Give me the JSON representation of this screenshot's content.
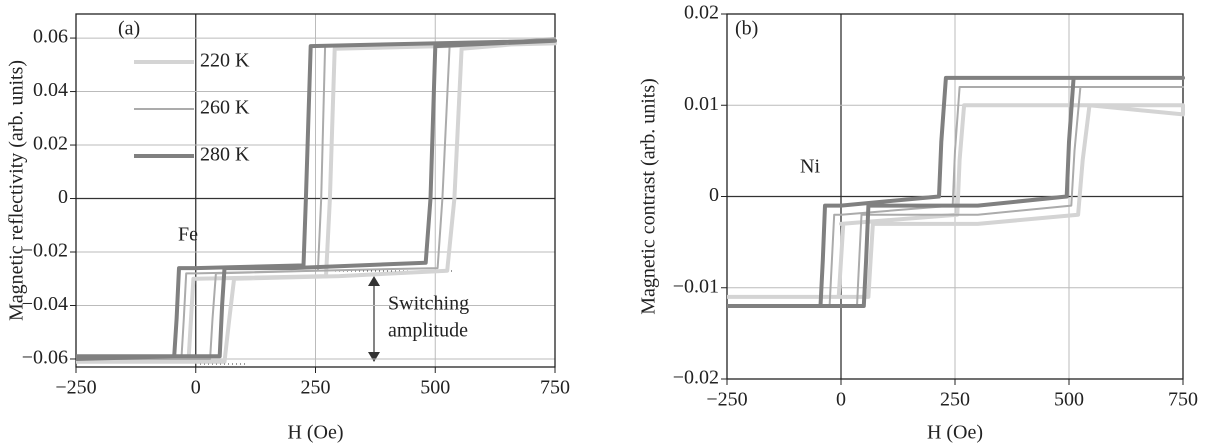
{
  "chart_data": [
    {
      "type": "line",
      "xlabel": "H (Oe)",
      "ylabel": "Magnetic reflectivity (arb. units)",
      "annotations": [
        "(a)",
        "Fe",
        "Switching",
        "amplitude"
      ],
      "xlim": [
        -250,
        750
      ],
      "ylim": [
        -0.063,
        0.069
      ],
      "xticks": [
        {
          "value": -250,
          "label": "−250"
        },
        0,
        250,
        500,
        750
      ],
      "yticks": [
        {
          "value": -0.06,
          "label": "−0.06"
        },
        {
          "value": -0.04,
          "label": "−0.04"
        },
        {
          "value": -0.02,
          "label": "−0.02"
        },
        0,
        0.02,
        0.04,
        0.06
      ],
      "grid": true,
      "legend": "upper left",
      "series": [
        {
          "name": "220 K",
          "color": "#d4d4d4",
          "width": 4,
          "x": [
            -250,
            60,
            70,
            80,
            300,
            525,
            540,
            555,
            750,
            750,
            290,
            280,
            272,
            0,
            -5,
            -10,
            -15,
            -250
          ],
          "values": [
            -0.061,
            -0.061,
            -0.045,
            -0.03,
            -0.029,
            -0.027,
            0.0,
            0.056,
            0.059,
            0.058,
            0.056,
            0.0,
            -0.029,
            -0.03,
            -0.03,
            -0.045,
            -0.06,
            -0.061
          ]
        },
        {
          "name": "260 K",
          "color": "#ababab",
          "width": 2,
          "x": [
            -250,
            30,
            35,
            42,
            250,
            505,
            515,
            530,
            750,
            750,
            270,
            262,
            255,
            0,
            -20,
            -25,
            -30,
            -250
          ],
          "values": [
            -0.06,
            -0.06,
            -0.045,
            -0.028,
            -0.027,
            -0.026,
            0.0,
            0.057,
            0.06,
            0.059,
            0.057,
            0.0,
            -0.027,
            -0.028,
            -0.028,
            -0.045,
            -0.06,
            -0.06
          ]
        },
        {
          "name": "280 K",
          "color": "#808080",
          "width": 4,
          "x": [
            -250,
            50,
            55,
            60,
            200,
            480,
            490,
            500,
            750,
            750,
            240,
            230,
            225,
            0,
            -35,
            -40,
            -45,
            -250
          ],
          "values": [
            -0.059,
            -0.059,
            -0.04,
            -0.026,
            -0.026,
            -0.024,
            0.0,
            0.057,
            0.059,
            0.059,
            0.057,
            0.0,
            -0.025,
            -0.026,
            -0.026,
            -0.045,
            -0.059,
            -0.06
          ]
        }
      ]
    },
    {
      "type": "line",
      "xlabel": "H (Oe)",
      "ylabel": "Magnetic contrast (arb. units)",
      "annotations": [
        "(b)",
        "Ni"
      ],
      "xlim": [
        -250,
        750
      ],
      "ylim": [
        -0.02,
        0.02
      ],
      "xticks": [
        {
          "value": -250,
          "label": "−250"
        },
        0,
        250,
        500,
        750
      ],
      "yticks": [
        {
          "value": -0.02,
          "label": "−0.02"
        },
        {
          "value": -0.01,
          "label": "−0.01"
        },
        0,
        0.01,
        0.02
      ],
      "grid": true,
      "series": [
        {
          "color": "#d4d4d4",
          "width": 4,
          "x": [
            -250,
            60,
            65,
            70,
            300,
            520,
            530,
            545,
            750,
            750,
            270,
            260,
            255,
            0,
            5,
            0,
            -5,
            -250
          ],
          "values": [
            -0.011,
            -0.011,
            -0.007,
            -0.003,
            -0.003,
            -0.002,
            0.004,
            0.01,
            0.009,
            0.01,
            0.01,
            0.004,
            -0.002,
            -0.003,
            -0.003,
            -0.007,
            -0.011,
            -0.011
          ]
        },
        {
          "color": "#ababab",
          "width": 2,
          "x": [
            -250,
            35,
            40,
            45,
            300,
            505,
            512,
            525,
            750,
            750,
            260,
            250,
            245,
            0,
            -15,
            -20,
            -25,
            -250
          ],
          "values": [
            -0.012,
            -0.012,
            -0.007,
            -0.002,
            -0.002,
            -0.001,
            0.005,
            0.012,
            0.012,
            0.012,
            0.012,
            0.005,
            -0.001,
            -0.002,
            -0.002,
            -0.007,
            -0.012,
            -0.012
          ]
        },
        {
          "color": "#808080",
          "width": 4,
          "x": [
            -250,
            50,
            55,
            60,
            300,
            495,
            500,
            510,
            750,
            750,
            230,
            220,
            215,
            0,
            -35,
            -40,
            -45,
            -250
          ],
          "values": [
            -0.012,
            -0.012,
            -0.007,
            -0.001,
            -0.001,
            0.0,
            0.006,
            0.013,
            0.013,
            0.013,
            0.013,
            0.006,
            0.0,
            -0.001,
            -0.001,
            -0.007,
            -0.012,
            -0.012
          ]
        }
      ]
    }
  ]
}
